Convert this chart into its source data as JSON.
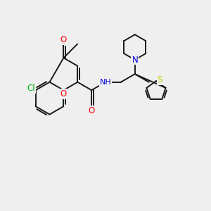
{
  "background_color": "#efefef",
  "bond_color": "#1a1a1a",
  "bond_width": 1.4,
  "atom_colors": {
    "O": "#ff0000",
    "N": "#0000dd",
    "S": "#cccc00",
    "Cl": "#00bb00",
    "C": "#1a1a1a",
    "H": "#888888"
  },
  "figsize": [
    3.0,
    3.0
  ],
  "dpi": 100
}
